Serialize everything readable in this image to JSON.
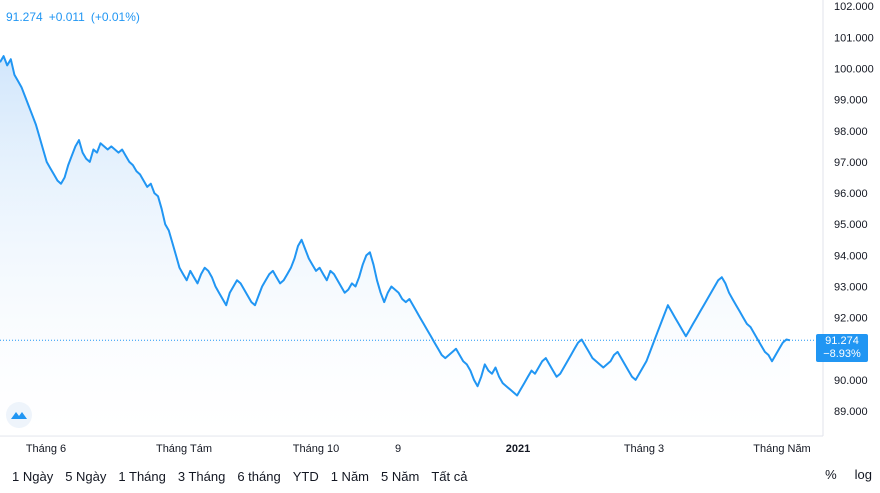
{
  "legend": {
    "price": "91.274",
    "change": "+0.011",
    "change_pct": "(+0.01%)"
  },
  "price_tag": {
    "price": "91.274",
    "change_pct": "−8.93%"
  },
  "range_buttons": [
    "1 Ngày",
    "5 Ngày",
    "1 Tháng",
    "3 Tháng",
    "6 tháng",
    "YTD",
    "1 Năm",
    "5 Năm",
    "Tất cả"
  ],
  "scale_buttons": {
    "percent": "%",
    "log": "log"
  },
  "colors": {
    "line": "#2196f3",
    "fill_top": "#cfe5fb",
    "fill_bottom": "#ffffff",
    "tag": "#2196f3"
  },
  "chart_data": {
    "type": "area",
    "ylim": [
      88.2,
      102.2
    ],
    "y_ticks": [
      "102.000",
      "101.000",
      "100.000",
      "99.000",
      "98.000",
      "97.000",
      "96.000",
      "95.000",
      "94.000",
      "93.000",
      "92.000",
      "91.000",
      "90.000",
      "89.000"
    ],
    "x_ticks": [
      "Tháng 6",
      "Tháng Tám",
      "Tháng 10",
      "9",
      "2021",
      "Tháng 3",
      "Tháng Năm"
    ],
    "last_value": 91.274,
    "series": [
      {
        "values": [
          100.2,
          100.4,
          100.1,
          100.3,
          99.8,
          99.6,
          99.4,
          99.1,
          98.8,
          98.5,
          98.2,
          97.8,
          97.4,
          97.0,
          96.8,
          96.6,
          96.4,
          96.3,
          96.5,
          96.9,
          97.2,
          97.5,
          97.7,
          97.3,
          97.1,
          97.0,
          97.4,
          97.3,
          97.6,
          97.5,
          97.4,
          97.5,
          97.4,
          97.3,
          97.4,
          97.2,
          97.0,
          96.9,
          96.7,
          96.6,
          96.4,
          96.2,
          96.3,
          96.0,
          95.9,
          95.5,
          95.0,
          94.8,
          94.4,
          94.0,
          93.6,
          93.4,
          93.2,
          93.5,
          93.3,
          93.1,
          93.4,
          93.6,
          93.5,
          93.3,
          93.0,
          92.8,
          92.6,
          92.4,
          92.8,
          93.0,
          93.2,
          93.1,
          92.9,
          92.7,
          92.5,
          92.4,
          92.7,
          93.0,
          93.2,
          93.4,
          93.5,
          93.3,
          93.1,
          93.2,
          93.4,
          93.6,
          93.9,
          94.3,
          94.5,
          94.2,
          93.9,
          93.7,
          93.5,
          93.6,
          93.4,
          93.2,
          93.5,
          93.4,
          93.2,
          93.0,
          92.8,
          92.9,
          93.1,
          93.0,
          93.3,
          93.7,
          94.0,
          94.1,
          93.7,
          93.2,
          92.8,
          92.5,
          92.8,
          93.0,
          92.9,
          92.8,
          92.6,
          92.5,
          92.6,
          92.4,
          92.2,
          92.0,
          91.8,
          91.6,
          91.4,
          91.2,
          91.0,
          90.8,
          90.7,
          90.8,
          90.9,
          91.0,
          90.8,
          90.6,
          90.5,
          90.3,
          90.0,
          89.8,
          90.1,
          90.5,
          90.3,
          90.2,
          90.4,
          90.1,
          89.9,
          89.8,
          89.7,
          89.6,
          89.5,
          89.7,
          89.9,
          90.1,
          90.3,
          90.2,
          90.4,
          90.6,
          90.7,
          90.5,
          90.3,
          90.1,
          90.2,
          90.4,
          90.6,
          90.8,
          91.0,
          91.2,
          91.3,
          91.1,
          90.9,
          90.7,
          90.6,
          90.5,
          90.4,
          90.5,
          90.6,
          90.8,
          90.9,
          90.7,
          90.5,
          90.3,
          90.1,
          90.0,
          90.2,
          90.4,
          90.6,
          90.9,
          91.2,
          91.5,
          91.8,
          92.1,
          92.4,
          92.2,
          92.0,
          91.8,
          91.6,
          91.4,
          91.6,
          91.8,
          92.0,
          92.2,
          92.4,
          92.6,
          92.8,
          93.0,
          93.2,
          93.3,
          93.1,
          92.8,
          92.6,
          92.4,
          92.2,
          92.0,
          91.8,
          91.7,
          91.5,
          91.3,
          91.1,
          90.9,
          90.8,
          90.6,
          90.8,
          91.0,
          91.2,
          91.3,
          91.274
        ]
      }
    ]
  }
}
